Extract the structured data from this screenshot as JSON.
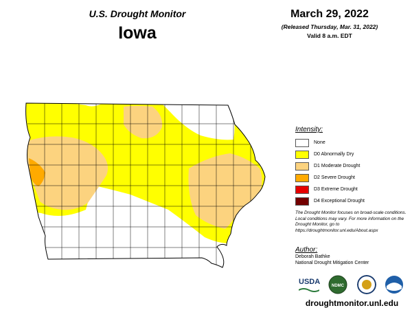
{
  "header": {
    "monitor_title": "U.S. Drought Monitor",
    "state": "Iowa",
    "date": "March 29, 2022",
    "released": "(Released Thursday, Mar. 31, 2022)",
    "valid": "Valid 8 a.m. EDT"
  },
  "legend": {
    "title": "Intensity:",
    "items": [
      {
        "label": "None",
        "color": "#ffffff"
      },
      {
        "label": "D0 Abnormally Dry",
        "color": "#ffff00"
      },
      {
        "label": "D1 Moderate Drought",
        "color": "#fcd37f"
      },
      {
        "label": "D2 Severe Drought",
        "color": "#ffaa00"
      },
      {
        "label": "D3 Extreme Drought",
        "color": "#e60000"
      },
      {
        "label": "D4 Exceptional Drought",
        "color": "#730000"
      }
    ]
  },
  "note": "The Drought Monitor focuses on broad-scale conditions. Local conditions may vary. For more information on the Drought Monitor, go to https://droughtmonitor.unl.edu/About.aspx",
  "author": {
    "title": "Author:",
    "name": "Deborah Bathke",
    "org": "National Drought Mitigation Center"
  },
  "logos": {
    "usda": "USDA",
    "ndmc": "NDMC",
    "icons": [
      "usda-logo-icon",
      "ndmc-logo-icon",
      "doc-seal-icon",
      "noaa-logo-icon"
    ]
  },
  "url": "droughtmonitor.unl.edu"
}
